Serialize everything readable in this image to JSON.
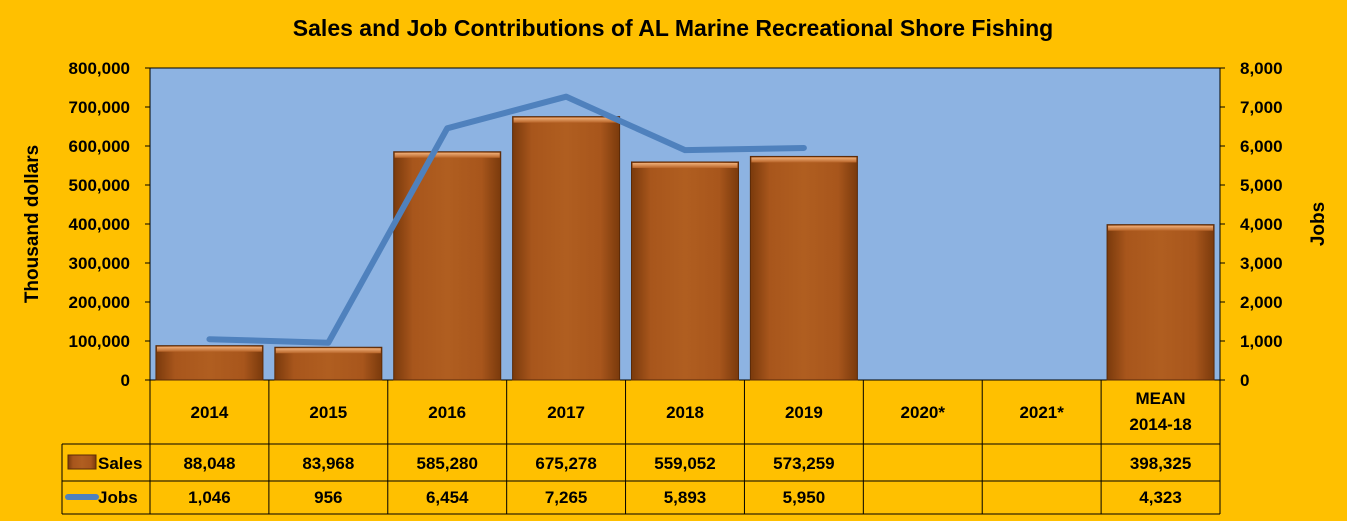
{
  "chart_data": {
    "type": "bar",
    "title": "Sales and Job Contributions of AL Marine Recreational Shore Fishing",
    "categories": [
      "2014",
      "2015",
      "2016",
      "2017",
      "2018",
      "2019",
      "2020*",
      "2021*",
      "MEAN 2014-18"
    ],
    "series": [
      {
        "name": "Sales",
        "type": "bar",
        "axis": "left",
        "values": [
          88048,
          83968,
          585280,
          675278,
          559052,
          573259,
          null,
          null,
          398325
        ],
        "labels": [
          "88,048",
          "83,968",
          "585,280",
          "675,278",
          "559,052",
          "573,259",
          "",
          "",
          "398,325"
        ],
        "color": "#a0521a"
      },
      {
        "name": "Jobs",
        "type": "line",
        "axis": "right",
        "values": [
          1046,
          956,
          6454,
          7265,
          5893,
          5950,
          null,
          null,
          4323
        ],
        "labels": [
          "1,046",
          "956",
          "6,454",
          "7,265",
          "5,893",
          "5,950",
          "",
          "",
          "4,323"
        ],
        "color": "#4f81bd"
      }
    ],
    "ylabel": "Thousand dollars",
    "ylim": [
      0,
      800000
    ],
    "yticks": [
      "0",
      "100,000",
      "200,000",
      "300,000",
      "400,000",
      "500,000",
      "600,000",
      "700,000",
      "800,000"
    ],
    "y2label": "Jobs",
    "y2lim": [
      0,
      8000
    ],
    "y2ticks": [
      "0",
      "1,000",
      "2,000",
      "3,000",
      "4,000",
      "5,000",
      "6,000",
      "7,000",
      "8,000"
    ],
    "plot_background": "#8db3e2",
    "data_table": true,
    "legend": "data table"
  }
}
